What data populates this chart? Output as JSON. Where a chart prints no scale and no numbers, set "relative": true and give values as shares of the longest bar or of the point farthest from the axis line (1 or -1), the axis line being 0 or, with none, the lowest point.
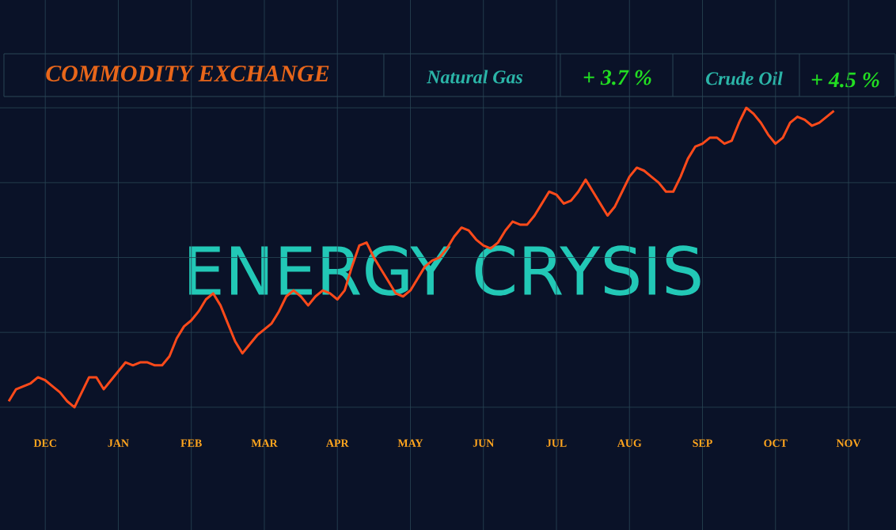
{
  "chart_data": {
    "type": "line",
    "title": "COMMODITY EXCHANGE",
    "annotations": [
      "Natural Gas",
      "+ 3.7 %",
      "Crude Oil",
      "+ 4.5 %",
      "ENERGY CRYSIS"
    ],
    "relative": true,
    "grid": true,
    "categories": [
      null,
      null,
      null,
      null,
      null,
      "DEC",
      null,
      null,
      null,
      null,
      null,
      null,
      null,
      null,
      null,
      "JAN",
      null,
      null,
      null,
      null,
      null,
      null,
      null,
      null,
      null,
      "FEB",
      null,
      null,
      null,
      null,
      null,
      null,
      null,
      null,
      null,
      "MAR",
      null,
      null,
      null,
      null,
      null,
      null,
      null,
      null,
      null,
      "APR",
      null,
      null,
      null,
      null,
      null,
      null,
      null,
      null,
      null,
      "MAY",
      null,
      null,
      null,
      null,
      null,
      null,
      null,
      null,
      null,
      "JUN",
      null,
      null,
      null,
      null,
      null,
      null,
      null,
      null,
      null,
      "JUL",
      null,
      null,
      null,
      null,
      null,
      null,
      null,
      null,
      null,
      "AUG",
      null,
      null,
      null,
      null,
      null,
      null,
      null,
      null,
      null,
      "SEP",
      null,
      null,
      null,
      null,
      null,
      null,
      null,
      null,
      null,
      "OCT",
      null,
      null,
      null,
      null,
      null,
      null,
      null,
      null,
      null,
      "NOV"
    ],
    "series": [
      {
        "color": "#ff4a1a",
        "values": [
          0.02,
          0.06,
          0.07,
          0.08,
          0.1,
          0.09,
          0.07,
          0.05,
          0.02,
          0,
          0.05,
          0.1,
          0.1,
          0.06,
          0.09,
          0.12,
          0.15,
          0.14,
          0.15,
          0.15,
          0.14,
          0.14,
          0.17,
          0.23,
          0.27,
          0.29,
          0.32,
          0.36,
          0.38,
          0.34,
          0.28,
          0.22,
          0.18,
          0.21,
          0.24,
          0.26,
          0.28,
          0.32,
          0.37,
          0.39,
          0.37,
          0.34,
          0.37,
          0.39,
          0.38,
          0.36,
          0.39,
          0.47,
          0.54,
          0.55,
          0.5,
          0.46,
          0.42,
          0.38,
          0.37,
          0.39,
          0.43,
          0.47,
          0.49,
          0.5,
          0.53,
          0.57,
          0.6,
          0.59,
          0.56,
          0.54,
          0.53,
          0.55,
          0.59,
          0.62,
          0.61,
          0.61,
          0.64,
          0.68,
          0.72,
          0.71,
          0.68,
          0.69,
          0.72,
          0.76,
          0.72,
          0.68,
          0.64,
          0.67,
          0.72,
          0.77,
          0.8,
          0.79,
          0.77,
          0.75,
          0.72,
          0.72,
          0.77,
          0.83,
          0.87,
          0.88,
          0.9,
          0.9,
          0.88,
          0.89,
          0.95,
          1,
          0.98,
          0.95,
          0.91,
          0.88,
          0.9,
          0.95,
          0.97,
          0.96,
          0.94,
          0.95,
          0.97,
          0.99,
          null,
          null
        ]
      }
    ]
  }
}
